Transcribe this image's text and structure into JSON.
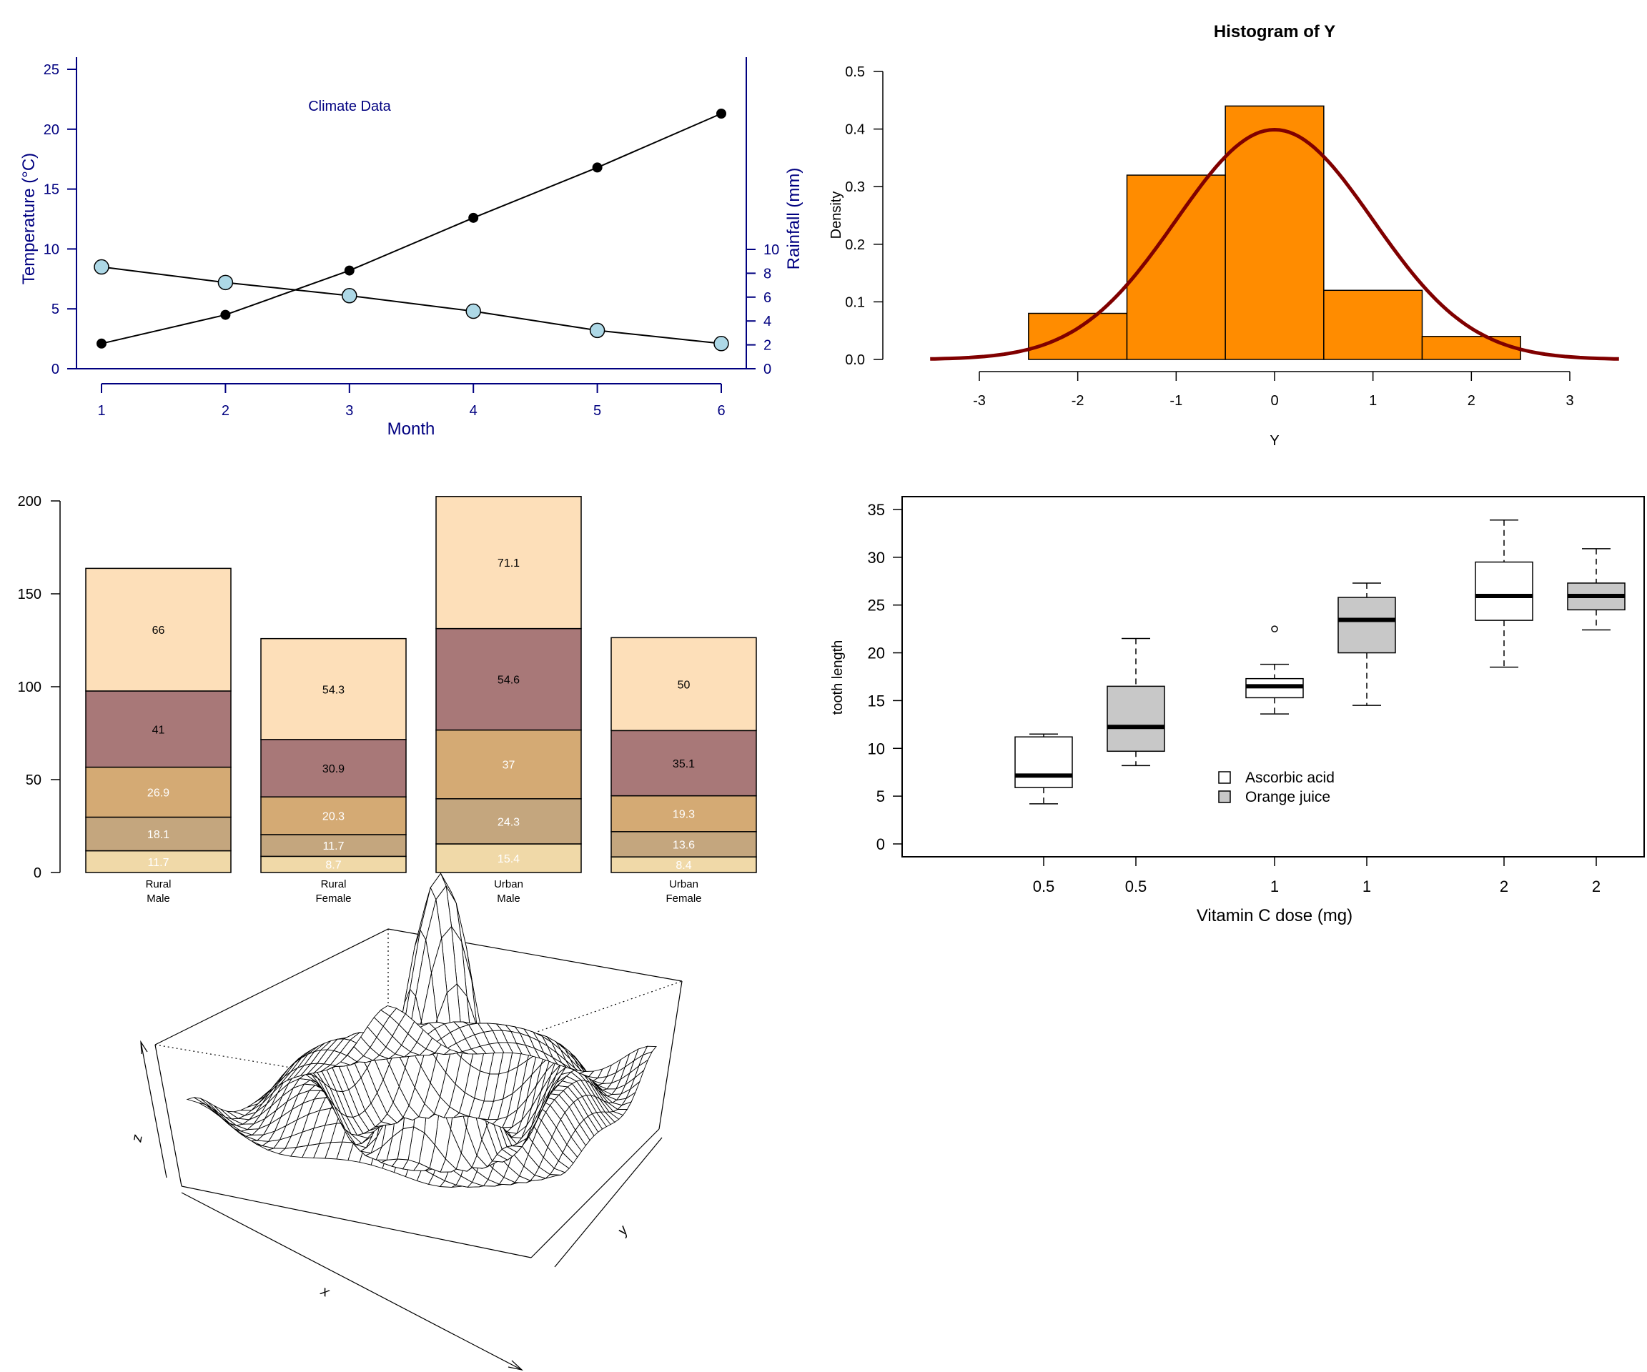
{
  "chart_data": [
    {
      "type": "line",
      "panel": "climate",
      "title": "Climate Data",
      "xlabel": "Month",
      "ylabel": "Temperature (°C)",
      "y2label": "Rainfall (mm)",
      "x": [
        1,
        2,
        3,
        4,
        5,
        6
      ],
      "xlim": [
        1,
        6
      ],
      "ylim": [
        0,
        25
      ],
      "y2lim": [
        0,
        10
      ],
      "y_ticks": [
        0,
        5,
        10,
        15,
        20,
        25
      ],
      "y2_ticks": [
        0,
        2,
        4,
        6,
        8,
        10
      ],
      "axis_color": "#000080",
      "series": [
        {
          "axis": "left",
          "marker": "filled-black-circle",
          "values": [
            2.1,
            4.5,
            8.2,
            12.6,
            16.8,
            21.3
          ]
        },
        {
          "axis": "left",
          "marker": "lightblue-circle",
          "marker_color": "#add8e6",
          "values": [
            8.5,
            7.2,
            6.1,
            4.8,
            3.2,
            2.1
          ]
        }
      ],
      "grid": false
    },
    {
      "type": "histogram",
      "panel": "histogram",
      "title": "Histogram of Y",
      "xlabel": "Y",
      "ylabel": "Density",
      "bins": [
        -2.5,
        -1.5,
        -0.5,
        0.5,
        1.5,
        2.5
      ],
      "densities": [
        0.08,
        0.32,
        0.44,
        0.12,
        0.04
      ],
      "bar_color": "#ff8c00",
      "curve": {
        "kind": "normal density",
        "mean": 0,
        "sd": 1,
        "color": "#800000",
        "from": -3.5,
        "to": 3.5
      },
      "xlim": [
        -3,
        3
      ],
      "ylim": [
        0,
        0.5
      ],
      "x_ticks": [
        -3,
        -2,
        -1,
        0,
        1,
        2,
        3
      ],
      "y_ticks": [
        0.0,
        0.1,
        0.2,
        0.3,
        0.4,
        0.5
      ],
      "y_tick_labels": [
        "0.0",
        "0.1",
        "0.2",
        "0.3",
        "0.4",
        "0.5"
      ],
      "grid": false
    },
    {
      "type": "bar",
      "stacked": true,
      "panel": "stacked",
      "categories": [
        "Rural\nMale",
        "Rural\nFemale",
        "Urban\nMale",
        "Urban\nFemale"
      ],
      "ylim": [
        0,
        200
      ],
      "y_ticks": [
        0,
        50,
        100,
        150,
        200
      ],
      "series": [
        {
          "values": [
            11.7,
            8.7,
            15.4,
            8.4
          ],
          "color": "#f0d9a8",
          "label_color": "#ffffff"
        },
        {
          "values": [
            18.1,
            11.7,
            24.3,
            13.6
          ],
          "color": "#c4a67e",
          "label_color": "#ffffff"
        },
        {
          "values": [
            26.9,
            20.3,
            37.0,
            19.3
          ],
          "color": "#d4aa74",
          "label_color": "#ffffff"
        },
        {
          "values": [
            41.0,
            30.9,
            54.6,
            35.1
          ],
          "color": "#a87878",
          "label_color": "#000000"
        },
        {
          "values": [
            66.0,
            54.3,
            71.1,
            50.0
          ],
          "color": "#fddfb9",
          "label_color": "#000000"
        }
      ],
      "segment_labels": [
        [
          "11.7",
          "8.7",
          "15.4",
          "8.4"
        ],
        [
          "18.1",
          "11.7",
          "24.3",
          "13.6"
        ],
        [
          "26.9",
          "20.3",
          "37",
          "19.3"
        ],
        [
          "41",
          "30.9",
          "54.6",
          "35.1"
        ],
        [
          "66",
          "54.3",
          "71.1",
          "50"
        ]
      ],
      "grid": false
    },
    {
      "type": "box",
      "panel": "boxplot",
      "xlabel": "Vitamin C dose (mg)",
      "ylabel": "tooth length",
      "categories": [
        "0.5",
        "0.5",
        "1",
        "1",
        "2",
        "2"
      ],
      "ylim": [
        0,
        35
      ],
      "y_ticks": [
        0,
        5,
        10,
        15,
        20,
        25,
        30,
        35
      ],
      "boxes": [
        {
          "group": "Ascorbic acid",
          "min": 4.2,
          "q1": 5.9,
          "median": 7.15,
          "q3": 11.2,
          "max": 11.5,
          "outliers": []
        },
        {
          "group": "Orange juice",
          "min": 8.2,
          "q1": 9.7,
          "median": 12.25,
          "q3": 16.5,
          "max": 21.5,
          "outliers": []
        },
        {
          "group": "Ascorbic acid",
          "min": 13.6,
          "q1": 15.3,
          "median": 16.5,
          "q3": 17.3,
          "max": 18.8,
          "outliers": [
            22.5
          ]
        },
        {
          "group": "Orange juice",
          "min": 14.5,
          "q1": 20.0,
          "median": 23.45,
          "q3": 25.8,
          "max": 27.3,
          "outliers": []
        },
        {
          "group": "Ascorbic acid",
          "min": 18.5,
          "q1": 23.4,
          "median": 25.95,
          "q3": 29.5,
          "max": 33.9,
          "outliers": []
        },
        {
          "group": "Orange juice",
          "min": 22.4,
          "q1": 24.5,
          "median": 25.95,
          "q3": 27.3,
          "max": 30.9,
          "outliers": []
        }
      ],
      "legend": {
        "position": "bottom-center",
        "entries": [
          {
            "label": "Ascorbic acid",
            "color": "#ffffff"
          },
          {
            "label": "Orange juice",
            "color": "#c8c8c8"
          }
        ]
      },
      "grid": false
    },
    {
      "type": "surface",
      "panel": "perspective",
      "x_axis_label": "x",
      "y_axis_label": "y",
      "z_axis_label": "z",
      "function": "sin(r)/r (sinc), r = sqrt(x^2 + y^2)",
      "view": {
        "theta": 30,
        "phi": 30
      },
      "grid": false
    }
  ]
}
